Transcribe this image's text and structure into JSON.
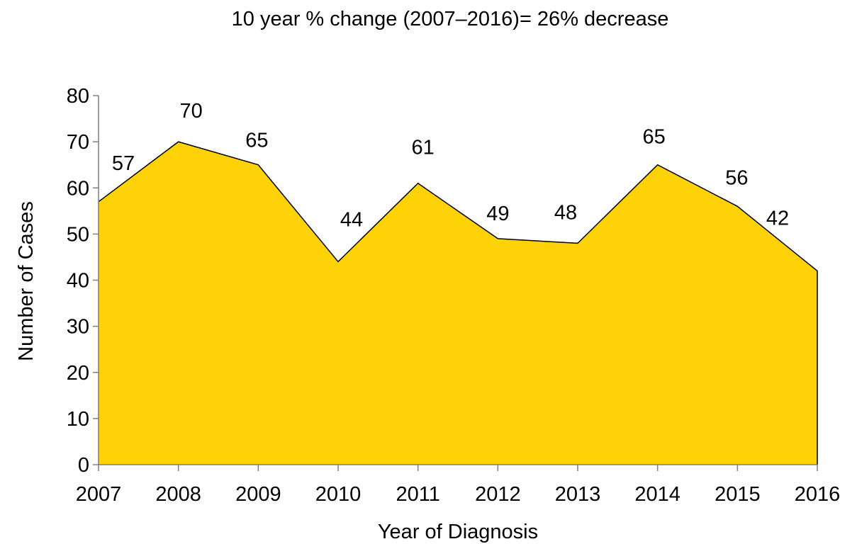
{
  "chart_data": {
    "type": "area",
    "title": "10 year % change (2007–2016)= 26% decrease",
    "xlabel": "Year of Diagnosis",
    "ylabel": "Number of Cases",
    "categories": [
      "2007",
      "2008",
      "2009",
      "2010",
      "2011",
      "2012",
      "2013",
      "2014",
      "2015",
      "2016"
    ],
    "series": [
      {
        "values": [
          57,
          70,
          65,
          44,
          61,
          49,
          48,
          65,
          56,
          42
        ]
      }
    ],
    "ylim": [
      0,
      80
    ],
    "yticks": [
      0,
      10,
      20,
      30,
      40,
      50,
      60,
      70,
      80
    ],
    "data_labels": [
      "57",
      "70",
      "65",
      "44",
      "61",
      "49",
      "48",
      "65",
      "56",
      "42"
    ],
    "grid": false,
    "legend": "none",
    "colors": {
      "fill": "#FDD308",
      "outline": "#000000",
      "axis": "#7f7f7f"
    }
  }
}
